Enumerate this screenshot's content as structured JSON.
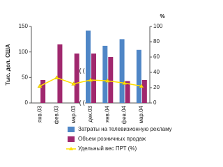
{
  "chart_data": {
    "type": "bar-line",
    "ylabel": "Тыс. дол. США",
    "y2label": "%",
    "categories": [
      "янв.03",
      "фев.03",
      "мар.03",
      "дек.03",
      "янв.04",
      "фев.04",
      "мар.04"
    ],
    "series": [
      {
        "name": "Затраты на телевизионную рекламу",
        "color": "#4f86c6",
        "type": "bar",
        "values": [
          null,
          null,
          null,
          142,
          112,
          125,
          104
        ]
      },
      {
        "name": "Объем розничных продаж",
        "color": "#a0286e",
        "type": "bar",
        "values": [
          45,
          115,
          97,
          97,
          90,
          43,
          45
        ]
      },
      {
        "name": "Удельный вес ПРТ (%)",
        "color": "#ffe000",
        "type": "line",
        "axis": "y2",
        "values": [
          22,
          33,
          25,
          30,
          29,
          26,
          22
        ]
      }
    ],
    "ylim": [
      0,
      150
    ],
    "yticks": [
      0,
      50,
      100,
      150
    ],
    "y2lim": [
      0,
      100
    ],
    "y2ticks": [
      0,
      20,
      40,
      60,
      80,
      100
    ]
  }
}
